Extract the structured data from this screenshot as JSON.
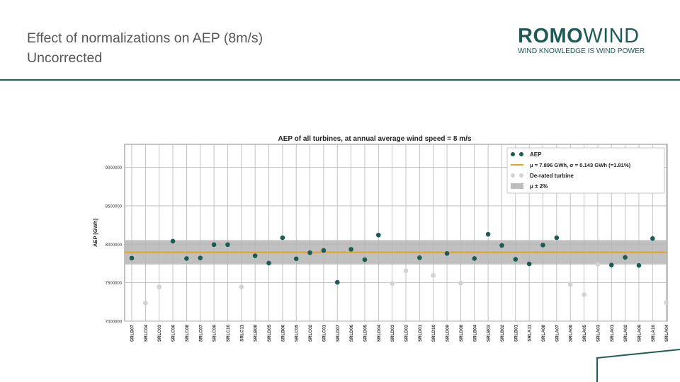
{
  "header": {
    "title_line1": "Effect of normalizations on AEP (8m/s)",
    "title_line2": "Uncorrected"
  },
  "logo": {
    "word1": "ROMO",
    "word2": "WIND",
    "tagline": "WIND KNOWLEDGE IS WIND POWER",
    "color": "#1f5a57"
  },
  "colors": {
    "accent": "#1d5e56",
    "aep_point": "#1b5b52",
    "derated_point": "#d2d2d2",
    "mean_line": "#e8a020",
    "band": "#bdbdbd"
  },
  "chart_data": {
    "type": "scatter",
    "title": "AEP of all turbines, at annual average wind speed = 8 m/s",
    "ylabel": "AEP [GWh]",
    "xlabel": "",
    "ylim": [
      7000000,
      9300000
    ],
    "yticks": [
      7000000,
      7500000,
      8000000,
      8500000,
      9000000
    ],
    "ytick_labels": [
      "7000000",
      "7500000",
      "8000000",
      "8500000",
      "9000000"
    ],
    "grid": true,
    "legend_position": "top-right",
    "legend": {
      "aep": "AEP",
      "mean": "μ = 7.896 GWh, σ = 0.143 GWh (=1.81%)",
      "derated": "De-rated turbine",
      "band": "μ ± 2%"
    },
    "mean": 7896000,
    "band_low": 7738080,
    "band_high": 8053920,
    "categories": [
      "SRLB07",
      "SRLC04",
      "SRLC03",
      "SRLC06",
      "SRLC08",
      "SRLC07",
      "SRLC09",
      "SRLC10",
      "SRLC11",
      "SRLB08",
      "SRLD05",
      "SRLB06",
      "SRLC05",
      "SRLC02",
      "SRLC01",
      "SRLD07",
      "SRLD06",
      "SRLD05",
      "SRLD04",
      "SRLD03",
      "SRLD02",
      "SRLD01",
      "SRLD10",
      "SRLD09",
      "SRLD08",
      "SRLB04",
      "SRLB03",
      "SRLB02",
      "SRLB01",
      "SRLA11",
      "SRLA08",
      "SRLA07",
      "SRLA06",
      "SRLA05",
      "SRLA03",
      "SRLA01",
      "SRLA02",
      "SRLA09",
      "SRLA10",
      "SRLA04"
    ],
    "series": [
      {
        "name": "AEP",
        "values": [
          7820000,
          null,
          null,
          8040000,
          7815000,
          7822000,
          7995000,
          7995000,
          null,
          7850000,
          7755000,
          8085000,
          7812000,
          7890000,
          7920000,
          7505000,
          7935000,
          7800000,
          8120000,
          null,
          null,
          7825000,
          null,
          7880000,
          null,
          7815000,
          8130000,
          7985000,
          7805000,
          7745000,
          7990000,
          8085000,
          null,
          null,
          null,
          7730000,
          7830000,
          7725000,
          8075000,
          null
        ]
      },
      {
        "name": "De-rated turbine",
        "values": [
          null,
          7235000,
          7445000,
          null,
          null,
          null,
          null,
          null,
          7445000,
          null,
          null,
          null,
          null,
          null,
          null,
          null,
          null,
          null,
          null,
          7490000,
          7655000,
          null,
          7595000,
          null,
          7495000,
          null,
          null,
          null,
          null,
          null,
          null,
          null,
          7475000,
          7345000,
          7740000,
          null,
          null,
          null,
          null,
          7240000
        ]
      }
    ]
  }
}
